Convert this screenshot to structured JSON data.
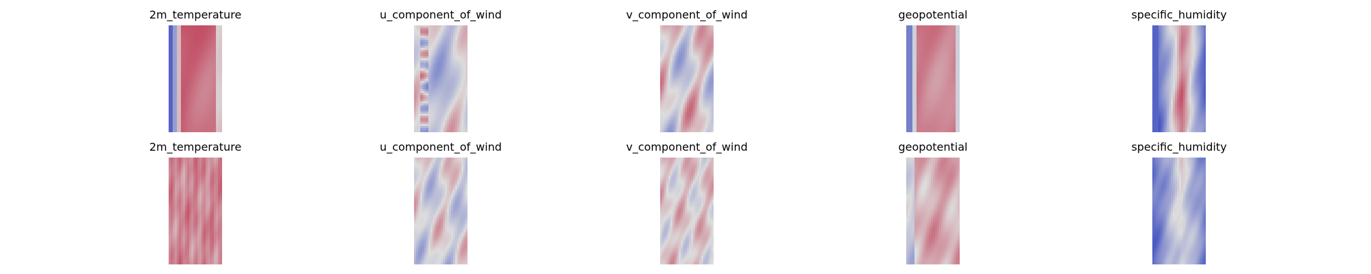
{
  "figure": {
    "rows": [
      {
        "panels": [
          {
            "title": "2m_temperature",
            "pattern": "temp_truth"
          },
          {
            "title": "u_component_of_wind",
            "pattern": "u_truth"
          },
          {
            "title": "v_component_of_wind",
            "pattern": "v_truth"
          },
          {
            "title": "geopotential",
            "pattern": "geo_truth"
          },
          {
            "title": "specific_humidity",
            "pattern": "hum_truth"
          }
        ]
      },
      {
        "panels": [
          {
            "title": "2m_temperature",
            "pattern": "temp_pred"
          },
          {
            "title": "u_component_of_wind",
            "pattern": "u_pred"
          },
          {
            "title": "v_component_of_wind",
            "pattern": "v_pred"
          },
          {
            "title": "geopotential",
            "pattern": "geo_pred"
          },
          {
            "title": "specific_humidity",
            "pattern": "hum_pred"
          }
        ]
      }
    ]
  },
  "chart_data": {
    "type": "heatmap",
    "colormap": "coolwarm",
    "colors": {
      "low": "#3b4cc0",
      "mid": "#dddddd",
      "high": "#b40426"
    }
  }
}
